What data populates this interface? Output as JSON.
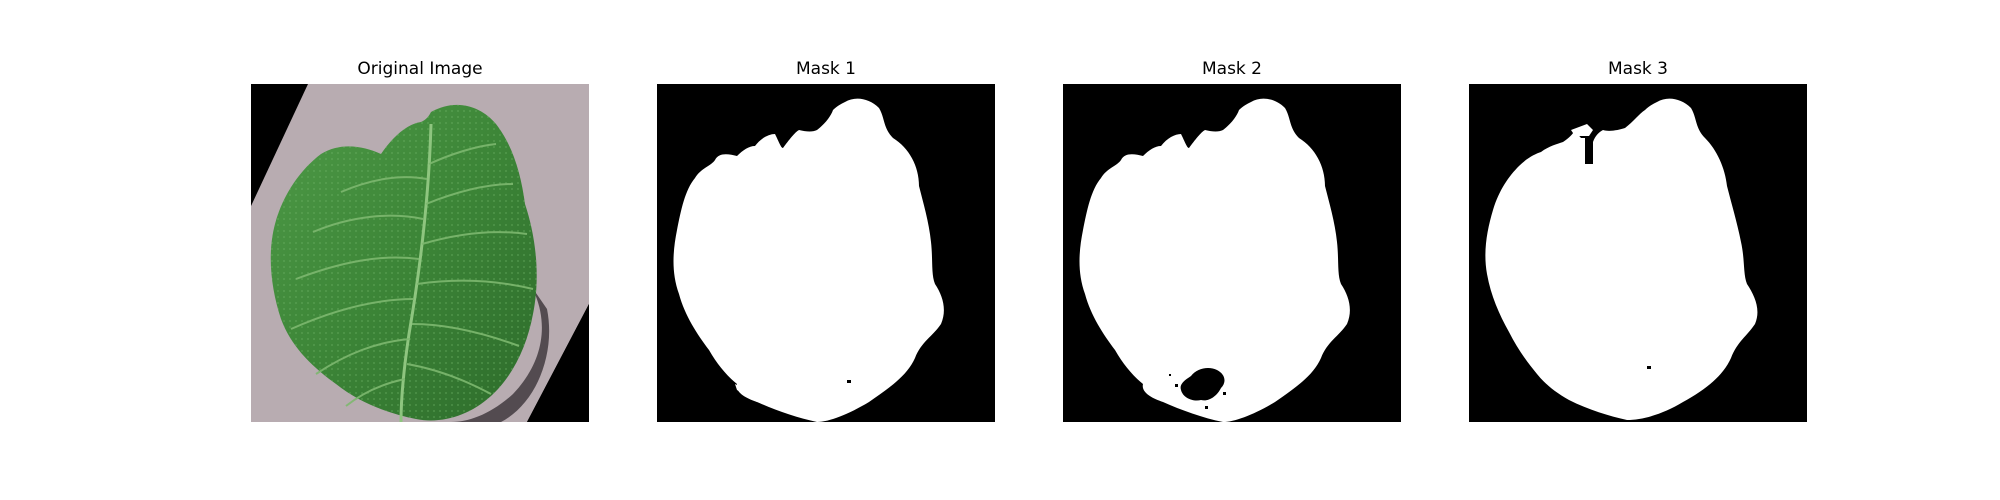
{
  "panels": [
    {
      "title": "Original Image"
    },
    {
      "title": "Mask 1"
    },
    {
      "title": "Mask 2"
    },
    {
      "title": "Mask 3"
    }
  ],
  "colors": {
    "background": "#ffffff",
    "mask_foreground": "#ffffff",
    "mask_background": "#000000",
    "leaf_green": "#3f8a3a",
    "surface_grey": "#b9adb2"
  }
}
